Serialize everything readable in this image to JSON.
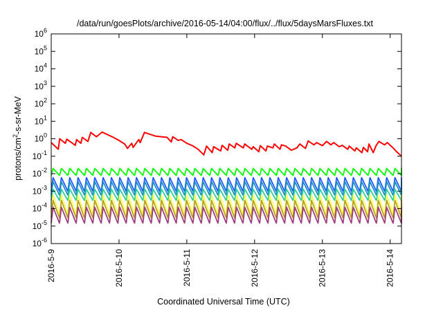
{
  "chart_data": {
    "type": "line",
    "title": "/data/run/goesPlots/archive/2016-05-14/04:00/flux/../flux/5daysMarsFluxes.txt",
    "xlabel": "Coordinated Universal Time (UTC)",
    "ylabel": {
      "base": "protons/cm",
      "sup": "2",
      "rest": "-s-sr-MeV"
    },
    "yscale": "log",
    "ylim_exponents": [
      -6,
      6
    ],
    "y_ticks": [
      {
        "base": "10",
        "exp": "-6",
        "value_exp": -6
      },
      {
        "base": "10",
        "exp": "-5",
        "value_exp": -5
      },
      {
        "base": "10",
        "exp": "-4",
        "value_exp": -4
      },
      {
        "base": "10",
        "exp": "-3",
        "value_exp": -3
      },
      {
        "base": "10",
        "exp": "-2",
        "value_exp": -2
      },
      {
        "base": "10",
        "exp": "-1",
        "value_exp": -1
      },
      {
        "base": "10",
        "exp": "0",
        "value_exp": 0
      },
      {
        "base": "10",
        "exp": "1",
        "value_exp": 1
      },
      {
        "base": "10",
        "exp": "2",
        "value_exp": 2
      },
      {
        "base": "10",
        "exp": "3",
        "value_exp": 3
      },
      {
        "base": "10",
        "exp": "4",
        "value_exp": 4
      },
      {
        "base": "10",
        "exp": "5",
        "value_exp": 5
      },
      {
        "base": "10",
        "exp": "6",
        "value_exp": 6
      }
    ],
    "x_ticks": [
      "2016-5-9",
      "2016-5-10",
      "2016-5-11",
      "2016-5-12",
      "2016-5-13",
      "2016-5-14"
    ],
    "x_start": "2016-5-9",
    "x_end": "2016-5-14T04:00",
    "grid": false,
    "legend": "none",
    "series": [
      {
        "color": "#ff0000",
        "x": [
          "2016-5-9T00:00",
          "2016-5-9T02:30",
          "2016-5-9T03:00",
          "2016-5-9T05:00",
          "2016-5-9T05:30",
          "2016-5-9T08:30",
          "2016-5-9T09:00",
          "2016-5-9T10:30",
          "2016-5-9T11:00",
          "2016-5-9T13:00",
          "2016-5-9T14:00",
          "2016-5-9T16:00",
          "2016-5-9T18:00",
          "2016-5-9T20:00",
          "2016-5-9T22:00",
          "2016-5-10T00:00",
          "2016-5-10T02:00",
          "2016-5-10T03:00",
          "2016-5-10T04:30",
          "2016-5-10T05:00",
          "2016-5-10T07:00",
          "2016-5-10T07:30",
          "2016-5-10T09:00",
          "2016-5-10T13:00",
          "2016-5-10T17:00",
          "2016-5-10T18:30",
          "2016-5-10T19:00",
          "2016-5-10T21:00",
          "2016-5-10T22:00",
          "2016-5-11T00:00",
          "2016-5-11T02:00",
          "2016-5-11T04:00",
          "2016-5-11T06:00",
          "2016-5-11T07:00",
          "2016-5-11T09:00",
          "2016-5-11T09:30",
          "2016-5-11T12:00",
          "2016-5-11T12:30",
          "2016-5-11T14:30",
          "2016-5-11T15:00",
          "2016-5-11T17:00",
          "2016-5-11T17:30",
          "2016-5-11T20:00",
          "2016-5-11T20:30",
          "2016-5-11T23:00",
          "2016-5-11T23:30",
          "2016-5-12T01:30",
          "2016-5-12T02:00",
          "2016-5-12T04:00",
          "2016-5-12T04:30",
          "2016-5-12T06:30",
          "2016-5-12T07:00",
          "2016-5-12T09:00",
          "2016-5-12T09:30",
          "2016-5-12T11:00",
          "2016-5-12T13:00",
          "2016-5-12T15:00",
          "2016-5-12T16:00",
          "2016-5-12T18:00",
          "2016-5-12T19:00",
          "2016-5-12T21:00",
          "2016-5-12T22:00",
          "2016-5-13T00:00",
          "2016-5-13T01:30",
          "2016-5-13T03:00",
          "2016-5-13T04:00",
          "2016-5-13T06:00",
          "2016-5-13T07:00",
          "2016-5-13T09:00",
          "2016-5-13T09:30",
          "2016-5-13T11:30",
          "2016-5-13T12:00",
          "2016-5-13T14:00",
          "2016-5-13T14:30",
          "2016-5-13T16:00",
          "2016-5-13T16:30",
          "2016-5-13T18:00",
          "2016-5-13T19:00",
          "2016-5-13T20:00",
          "2016-5-13T22:00",
          "2016-5-13T23:00",
          "2016-5-14T01:00",
          "2016-5-14T02:00",
          "2016-5-14T04:00"
        ],
        "y": [
          0.6,
          0.25,
          1.0,
          0.55,
          0.95,
          0.42,
          0.9,
          0.55,
          1.2,
          0.7,
          2.3,
          1.3,
          2.4,
          1.7,
          1.2,
          0.8,
          0.5,
          0.28,
          0.55,
          0.32,
          0.9,
          0.6,
          2.3,
          1.4,
          1.2,
          0.65,
          1.3,
          0.8,
          0.9,
          0.55,
          0.4,
          0.25,
          0.12,
          0.38,
          0.16,
          0.35,
          0.2,
          0.42,
          0.22,
          0.5,
          0.3,
          0.55,
          0.3,
          0.5,
          0.25,
          0.35,
          0.18,
          0.4,
          0.2,
          0.38,
          0.3,
          0.5,
          0.25,
          0.45,
          0.38,
          0.22,
          0.3,
          0.5,
          0.28,
          0.75,
          0.45,
          0.6,
          0.4,
          0.7,
          0.45,
          0.6,
          0.35,
          0.42,
          0.25,
          0.38,
          0.2,
          0.3,
          0.16,
          0.32,
          0.18,
          0.5,
          0.16,
          0.4,
          0.7,
          0.45,
          0.6,
          0.3,
          0.2,
          0.1
        ]
      },
      {
        "color": "#00ff00",
        "peak": 0.02,
        "trough": 0.008
      },
      {
        "color": "#1a5aff",
        "peak": 0.006,
        "trough": 0.001
      },
      {
        "color": "#1e90c0",
        "peak": 0.0035,
        "trough": 0.0006
      },
      {
        "color": "#2ecf9a",
        "peak": 0.0013,
        "trough": 0.0003
      },
      {
        "color": "#ffff55",
        "peak": 0.0006,
        "trough": 5e-05
      },
      {
        "color": "#b8a020",
        "peak": 0.0003,
        "trough": 3e-05
      },
      {
        "color": "#a0407a",
        "peak": 0.00012,
        "trough": 1.5e-05
      }
    ]
  }
}
